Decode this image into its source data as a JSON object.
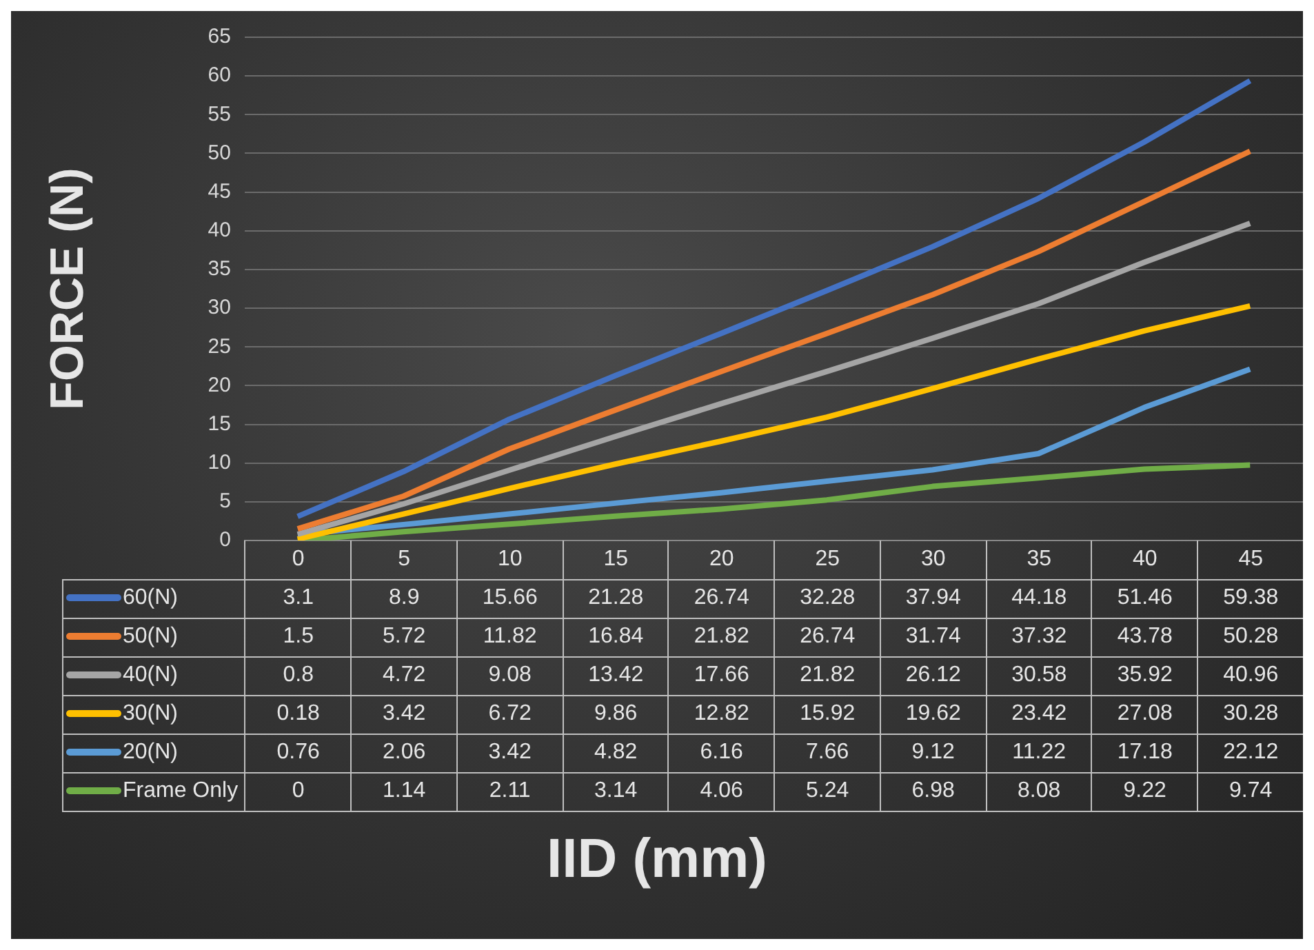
{
  "chart_data": {
    "type": "line",
    "xlabel": "IID (mm)",
    "ylabel": "FORCE (N)",
    "categories": [
      "0",
      "5",
      "10",
      "15",
      "20",
      "25",
      "30",
      "35",
      "40",
      "45"
    ],
    "ylim": [
      0,
      65
    ],
    "yticks": [
      0,
      5,
      10,
      15,
      20,
      25,
      30,
      35,
      40,
      45,
      50,
      55,
      60,
      65
    ],
    "grid": "y",
    "legend": "bottom",
    "data_labels": true,
    "marker": "none",
    "series": [
      {
        "name": "60(N)",
        "color": "#4472c4",
        "values": [
          3.1,
          8.9,
          15.66,
          21.28,
          26.74,
          32.28,
          37.94,
          44.18,
          51.46,
          59.38
        ]
      },
      {
        "name": "50(N)",
        "color": "#ed7d31",
        "values": [
          1.5,
          5.72,
          11.82,
          16.84,
          21.82,
          26.74,
          31.74,
          37.32,
          43.78,
          50.28
        ]
      },
      {
        "name": "40(N)",
        "color": "#a5a5a5",
        "values": [
          0.8,
          4.72,
          9.08,
          13.42,
          17.66,
          21.82,
          26.12,
          30.58,
          35.92,
          40.96
        ]
      },
      {
        "name": "30(N)",
        "color": "#ffc000",
        "values": [
          0.18,
          3.42,
          6.72,
          9.86,
          12.82,
          15.92,
          19.62,
          23.42,
          27.08,
          30.28
        ]
      },
      {
        "name": "20(N)",
        "color": "#5b9bd5",
        "values": [
          0.76,
          2.06,
          3.42,
          4.82,
          6.16,
          7.66,
          9.12,
          11.22,
          17.18,
          22.12
        ]
      },
      {
        "name": "Frame Only",
        "color": "#70ad47",
        "values": [
          0,
          1.14,
          2.11,
          3.14,
          4.06,
          5.24,
          6.98,
          8.08,
          9.22,
          9.74
        ]
      }
    ]
  }
}
